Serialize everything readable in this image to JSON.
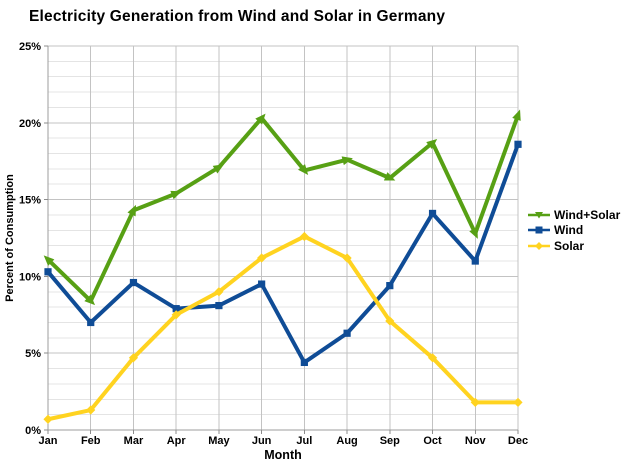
{
  "title": "Electricity Generation from Wind and Solar in Germany",
  "chart_data": {
    "type": "line",
    "title": "Electricity Generation from Wind and Solar in Germany",
    "xlabel": "Month",
    "ylabel": "Percent of Consumption",
    "ylim": [
      0,
      25
    ],
    "ytick_major": 5,
    "ytick_minor": 1,
    "ytick_labels": [
      "0%",
      "5%",
      "10%",
      "15%",
      "20%",
      "25%"
    ],
    "grid": true,
    "legend_position": "right",
    "categories": [
      "Jan",
      "Feb",
      "Mar",
      "Apr",
      "May",
      "Jun",
      "Jul",
      "Aug",
      "Sep",
      "Oct",
      "Nov",
      "Dec"
    ],
    "series": [
      {
        "name": "Wind+Solar",
        "color": "#57A014",
        "marker": "arrow",
        "values": [
          11.1,
          8.4,
          14.3,
          15.4,
          17.1,
          20.3,
          16.9,
          17.6,
          16.4,
          18.7,
          12.8,
          20.5
        ]
      },
      {
        "name": "Wind",
        "color": "#0F4C96",
        "marker": "square",
        "values": [
          10.3,
          7.0,
          9.6,
          7.9,
          8.1,
          9.5,
          4.4,
          6.3,
          9.4,
          14.1,
          11.0,
          18.6
        ]
      },
      {
        "name": "Solar",
        "color": "#FFD320",
        "marker": "diamond",
        "values": [
          0.7,
          1.3,
          4.7,
          7.5,
          9.0,
          11.2,
          12.6,
          11.2,
          7.1,
          4.7,
          1.8,
          1.8
        ]
      }
    ],
    "colors": {
      "grid_minor": "#E4E4E4",
      "grid_major": "#C3C3C3",
      "axis": "#9C9C9C"
    }
  }
}
